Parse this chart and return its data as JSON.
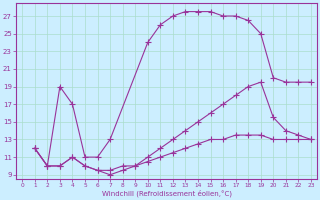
{
  "xlabel": "Windchill (Refroidissement éolien,°C)",
  "bg_color": "#cceeff",
  "line_color": "#993399",
  "xlim": [
    -0.5,
    23.5
  ],
  "ylim": [
    8.5,
    28.5
  ],
  "xticks": [
    0,
    1,
    2,
    3,
    4,
    5,
    6,
    7,
    8,
    9,
    10,
    11,
    12,
    13,
    14,
    15,
    16,
    17,
    18,
    19,
    20,
    21,
    22,
    23
  ],
  "yticks": [
    9,
    11,
    13,
    15,
    17,
    19,
    21,
    23,
    25,
    27
  ],
  "series": [
    {
      "x": [
        1,
        2,
        3,
        4,
        5,
        6,
        7,
        10,
        11,
        12,
        13,
        14,
        15,
        16,
        17,
        18,
        19,
        20,
        21,
        22,
        23
      ],
      "y": [
        12,
        10,
        19,
        17,
        11,
        11,
        13,
        24,
        26,
        27,
        27.5,
        27.5,
        27.5,
        27,
        27,
        26.5,
        25,
        20,
        19.5,
        19.5,
        19.5
      ]
    },
    {
      "x": [
        1,
        2,
        3,
        4,
        5,
        6,
        7,
        8,
        9,
        10,
        11,
        12,
        13,
        14,
        15,
        16,
        17,
        18,
        19,
        20,
        21,
        22,
        23
      ],
      "y": [
        12,
        10,
        10,
        11,
        10,
        9.5,
        9.5,
        10,
        10,
        11,
        12,
        13,
        14,
        15,
        16,
        17,
        18,
        19,
        19.5,
        15.5,
        14,
        13.5,
        13
      ]
    },
    {
      "x": [
        1,
        2,
        3,
        4,
        5,
        6,
        7,
        8,
        9,
        10,
        11,
        12,
        13,
        14,
        15,
        16,
        17,
        18,
        19,
        20,
        21,
        22,
        23
      ],
      "y": [
        12,
        10,
        10,
        11,
        10,
        9.5,
        9,
        9.5,
        10,
        10.5,
        11,
        11.5,
        12,
        12.5,
        13,
        13,
        13.5,
        13.5,
        13.5,
        13,
        13,
        13,
        13
      ]
    }
  ]
}
